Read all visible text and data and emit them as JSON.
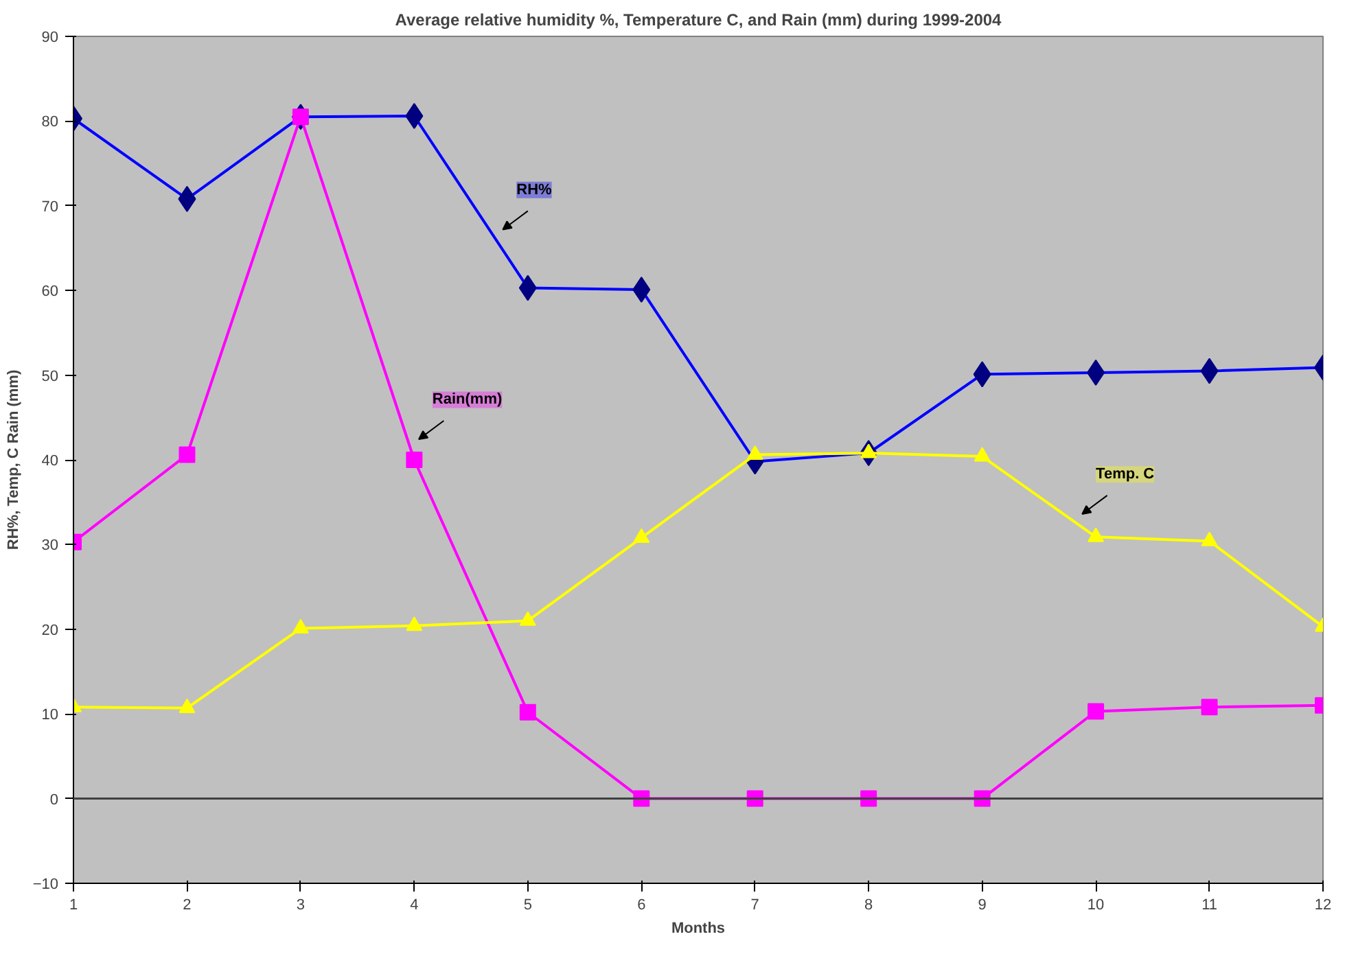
{
  "chart_data": {
    "type": "line",
    "title": "Average relative humidity %, Temperature C, and Rain (mm) during 1999-2004",
    "xlabel": "Months",
    "ylabel": "RH%, Temp, C Rain (mm)",
    "x": [
      1,
      2,
      3,
      4,
      5,
      6,
      7,
      8,
      9,
      10,
      11,
      12
    ],
    "xlim": [
      1,
      12
    ],
    "xticks": [
      1,
      2,
      3,
      4,
      5,
      6,
      7,
      8,
      9,
      10,
      11,
      12
    ],
    "ylim": [
      -10,
      90
    ],
    "yticks": [
      -10,
      0,
      10,
      20,
      30,
      40,
      50,
      60,
      70,
      80,
      90
    ],
    "grid": false,
    "legend": false,
    "ref_lines": [
      {
        "axis": "y",
        "value": 0,
        "color": "#404040"
      }
    ],
    "series": [
      {
        "name": "RH%",
        "color": "#0000ff",
        "marker": "diamond",
        "values": [
          80.3,
          70.8,
          80.5,
          80.6,
          60.3,
          60.1,
          39.8,
          40.8,
          50.1,
          50.3,
          50.5,
          50.9
        ]
      },
      {
        "name": "Rain(mm)",
        "color": "#ff00ff",
        "marker": "square",
        "values": [
          30.3,
          40.6,
          80.5,
          40,
          10.2,
          0,
          0,
          0,
          0,
          10.3,
          10.8,
          11
        ]
      },
      {
        "name": "Temp. C",
        "color": "#ffff00",
        "marker": "triangle",
        "values": [
          10.8,
          10.7,
          20.1,
          20.4,
          21,
          30.8,
          40.6,
          40.8,
          40.4,
          30.9,
          30.4,
          20.3
        ]
      }
    ]
  }
}
